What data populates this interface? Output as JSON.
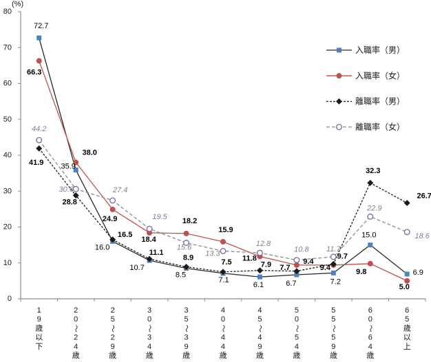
{
  "chart_data": {
    "type": "line",
    "title": "",
    "y_axis": {
      "unit": "(%)",
      "min": 0,
      "max": 80,
      "step": 10,
      "ticks": [
        0,
        10,
        20,
        30,
        40,
        50,
        60,
        70,
        80
      ]
    },
    "categories": [
      "19歳以下",
      "20～24歳",
      "25～29歳",
      "30～34歳",
      "35～39歳",
      "40～44歳",
      "45～49歳",
      "50～54歳",
      "55～59歳",
      "60～64歳",
      "65歳以上"
    ],
    "series": [
      {
        "name": "入職率（男）",
        "values": [
          72.7,
          35.9,
          16.0,
          10.7,
          8.5,
          7.1,
          6.1,
          6.7,
          7.2,
          15.0,
          6.9
        ],
        "marker": "square",
        "marker_color": "#4f81bd",
        "line_color": "#262626",
        "dash": "",
        "label_weight": "normal",
        "label_style": "normal",
        "label_color": "#000000",
        "label_offsets": [
          [
            3,
            -17
          ],
          [
            -11,
            -5
          ],
          [
            -15,
            9
          ],
          [
            -18,
            11
          ],
          [
            -8,
            10
          ],
          [
            1,
            10
          ],
          [
            -2,
            12
          ],
          [
            -8,
            13
          ],
          [
            3,
            13
          ],
          [
            -2,
            -14
          ],
          [
            16,
            -2
          ]
        ]
      },
      {
        "name": "入職率（女）",
        "values": [
          66.3,
          38.0,
          24.9,
          18.4,
          18.2,
          15.9,
          11.8,
          9.4,
          9.4,
          9.8,
          5.0
        ],
        "marker": "circle",
        "marker_color": "#c0504d",
        "line_color": "#c0504d",
        "dash": "",
        "label_weight": "bold",
        "label_style": "normal",
        "label_color": "#000000",
        "label_offsets": [
          [
            -7,
            17
          ],
          [
            20,
            -14
          ],
          [
            -4,
            14
          ],
          [
            -1,
            10
          ],
          [
            5,
            -18
          ],
          [
            4,
            -17
          ],
          [
            -15,
            3
          ],
          [
            17,
            -5
          ],
          [
            -12,
            4
          ],
          [
            -13,
            12
          ],
          [
            -4,
            9
          ]
        ]
      },
      {
        "name": "離職率（男）",
        "values": [
          41.9,
          28.8,
          16.5,
          11.1,
          8.9,
          7.5,
          7.9,
          7.7,
          9.7,
          32.3,
          26.7
        ],
        "marker": "diamond",
        "marker_color": "#1a1a1a",
        "line_color": "#1a1a1a",
        "dash": "3 2",
        "label_weight": "bold",
        "label_style": "normal",
        "label_color": "#000000",
        "label_offsets": [
          [
            -4,
            21
          ],
          [
            -9,
            10
          ],
          [
            18,
            -7
          ],
          [
            10,
            -9
          ],
          [
            3,
            -13
          ],
          [
            5,
            -14
          ],
          [
            9,
            -8
          ],
          [
            -17,
            -5
          ],
          [
            13,
            -11
          ],
          [
            4,
            -17
          ],
          [
            25,
            -10
          ]
        ]
      },
      {
        "name": "離職率（女）",
        "values": [
          44.2,
          30.6,
          27.4,
          19.5,
          15.6,
          13.3,
          12.8,
          10.8,
          11.7,
          22.9,
          18.6
        ],
        "marker": "open-circle",
        "marker_color": "#8064a2",
        "line_color": "#8c8c8c",
        "dash": "5 3",
        "label_weight": "normal",
        "label_style": "italic",
        "label_color": "#7f7f96",
        "label_offsets": [
          [
            0,
            -16
          ],
          [
            -14,
            1
          ],
          [
            11,
            -15
          ],
          [
            15,
            -17
          ],
          [
            -3,
            7
          ],
          [
            -15,
            4
          ],
          [
            5,
            -13
          ],
          [
            7,
            -15
          ],
          [
            0,
            -11
          ],
          [
            6,
            -12
          ],
          [
            22,
            6
          ]
        ]
      }
    ],
    "legend": {
      "position": "right-top"
    },
    "grid": false
  }
}
